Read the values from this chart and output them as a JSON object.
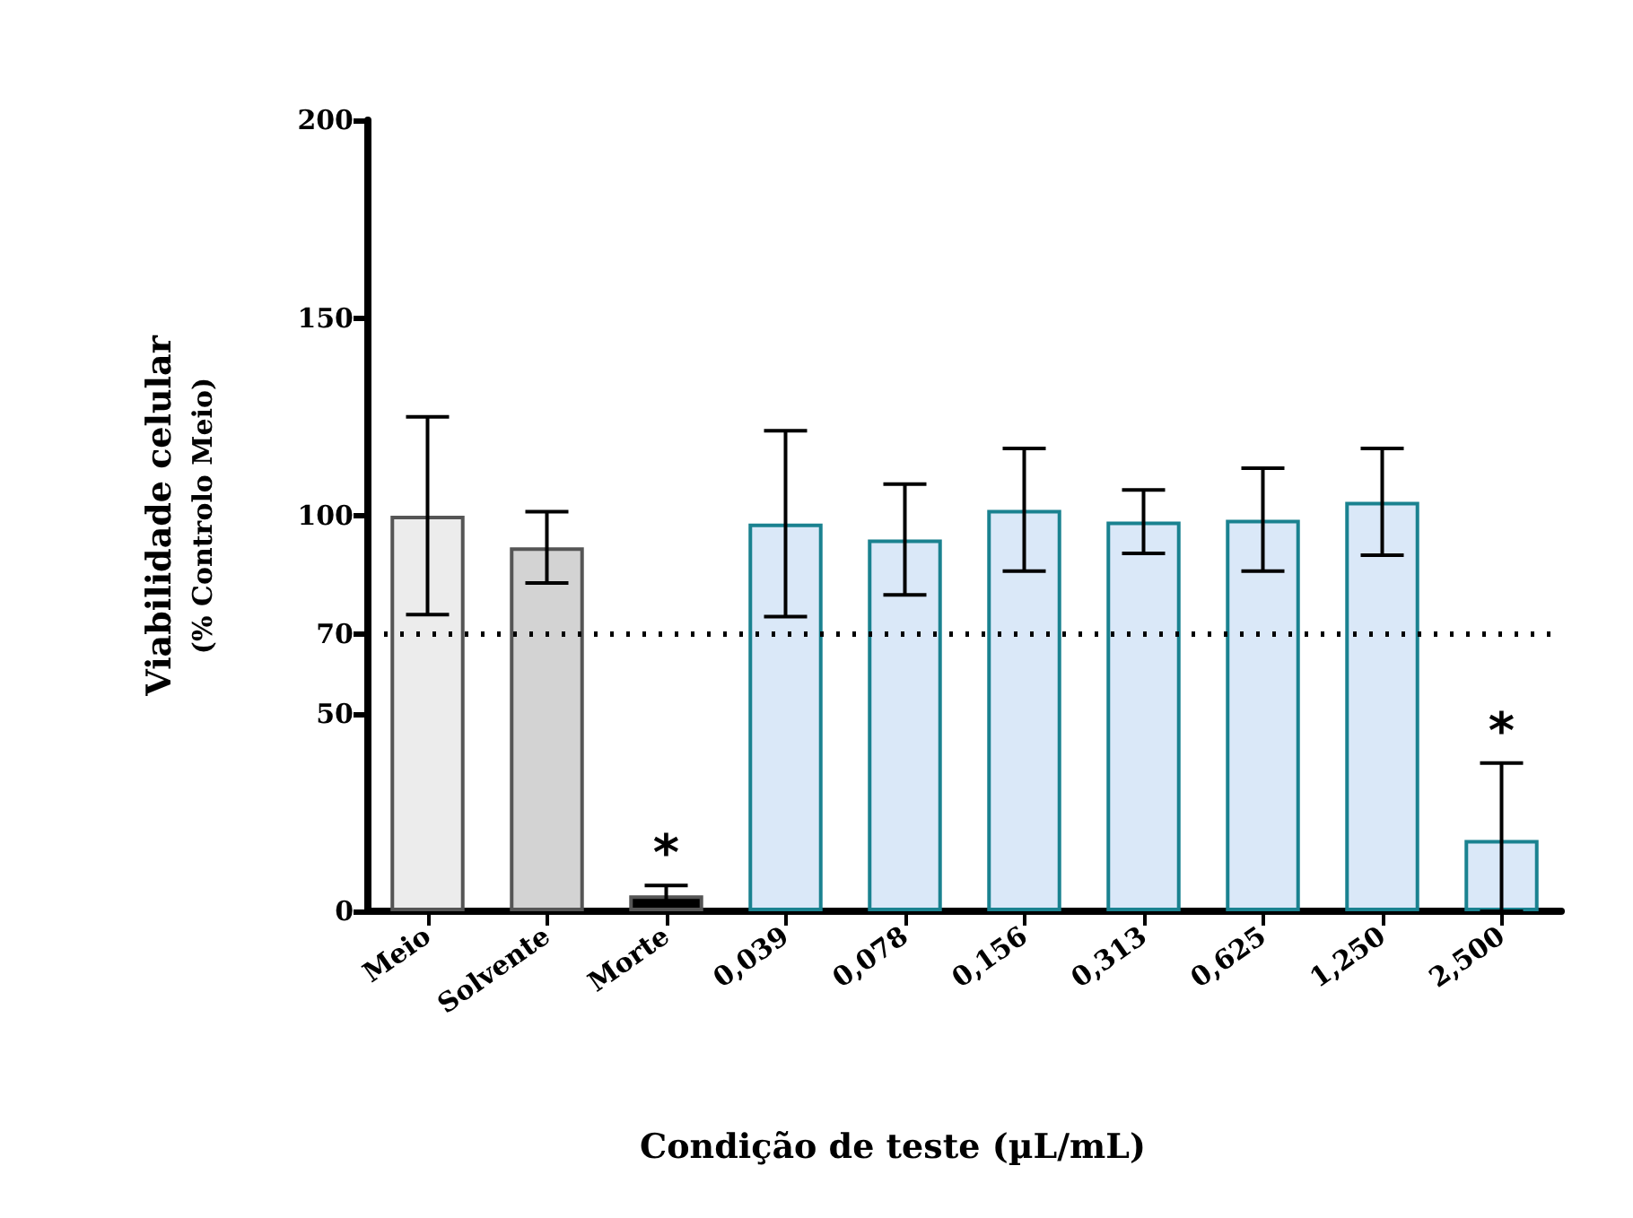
{
  "chart_data": {
    "type": "bar",
    "xlabel": "Condição de teste (µL/mL)",
    "ylabel": "Viabilidade celular\n(% Controlo Meio)",
    "categories": [
      "Meio",
      "Solvente",
      "Morte",
      "0,039",
      "0,078",
      "0,156",
      "0,313",
      "0,625",
      "1,250",
      "2,500"
    ],
    "values": [
      100,
      92,
      4,
      98,
      94,
      101.5,
      98.5,
      99,
      103.5,
      18
    ],
    "errors": [
      25,
      9,
      2.5,
      23.5,
      14,
      15.5,
      8,
      13,
      13.5,
      [
        0,
        37.5
      ]
    ],
    "colors": [
      "#ececec",
      "#d3d3d3",
      "#000000",
      "#dae8f8",
      "#dae8f8",
      "#dae8f8",
      "#dae8f8",
      "#dae8f8",
      "#dae8f8",
      "#dae8f8"
    ],
    "ylim": [
      0,
      200
    ],
    "yticks": [
      0,
      50,
      70,
      100,
      150,
      200
    ],
    "grid": false,
    "ref_lines": [
      {
        "axis": "y",
        "value": 70,
        "label": null,
        "color": "#000000",
        "line_style": "dotted"
      }
    ],
    "annotations": [
      {
        "text": "*",
        "x": "Morte",
        "y": 4
      },
      {
        "text": "*",
        "x": "2,500",
        "y": 18
      }
    ]
  }
}
